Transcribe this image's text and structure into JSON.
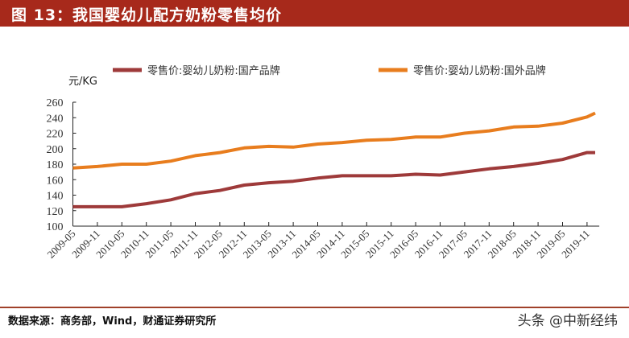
{
  "header": {
    "title": "图 13：我国婴幼儿配方奶粉零售均价"
  },
  "footer": {
    "source": "数据来源：商务部，Wind，财通证券研究所",
    "watermark": "头条 @中新经纬"
  },
  "colors": {
    "title_bar": "#a7291b",
    "domestic": "#9e3a3a",
    "imported": "#e87d1e"
  },
  "chart_data": {
    "type": "line",
    "ylabel": "元/KG",
    "ylim": [
      100,
      260
    ],
    "yticks": [
      100,
      120,
      140,
      160,
      180,
      200,
      220,
      240,
      260
    ],
    "xticks": [
      "2009-05",
      "2009-11",
      "2010-05",
      "2010-11",
      "2011-05",
      "2011-11",
      "2012-05",
      "2012-11",
      "2013-05",
      "2013-11",
      "2014-05",
      "2014-11",
      "2015-05",
      "2015-11",
      "2016-05",
      "2016-11",
      "2017-05",
      "2017-11",
      "2018-05",
      "2018-11",
      "2019-05",
      "2019-11"
    ],
    "xlim": [
      "2009-05",
      "2020-02"
    ],
    "legend": "top",
    "grid": false,
    "x": [
      "2009-05",
      "2009-11",
      "2010-05",
      "2010-11",
      "2011-05",
      "2011-11",
      "2012-05",
      "2012-11",
      "2013-05",
      "2013-11",
      "2014-05",
      "2014-11",
      "2015-05",
      "2015-11",
      "2016-05",
      "2016-11",
      "2017-05",
      "2017-11",
      "2018-05",
      "2018-11",
      "2019-05",
      "2019-11",
      "2020-01"
    ],
    "series": [
      {
        "name": "零售价:婴幼儿奶粉:国产品牌",
        "color": "#9e3a3a",
        "values": [
          125,
          125,
          125,
          129,
          134,
          142,
          146,
          153,
          156,
          158,
          162,
          165,
          165,
          165,
          167,
          166,
          170,
          174,
          177,
          181,
          186,
          195,
          195
        ]
      },
      {
        "name": "零售价:婴幼儿奶粉:国外品牌",
        "color": "#e87d1e",
        "values": [
          175,
          177,
          180,
          180,
          184,
          191,
          195,
          201,
          203,
          202,
          206,
          208,
          211,
          212,
          215,
          215,
          220,
          223,
          228,
          229,
          233,
          241,
          246
        ]
      }
    ]
  }
}
